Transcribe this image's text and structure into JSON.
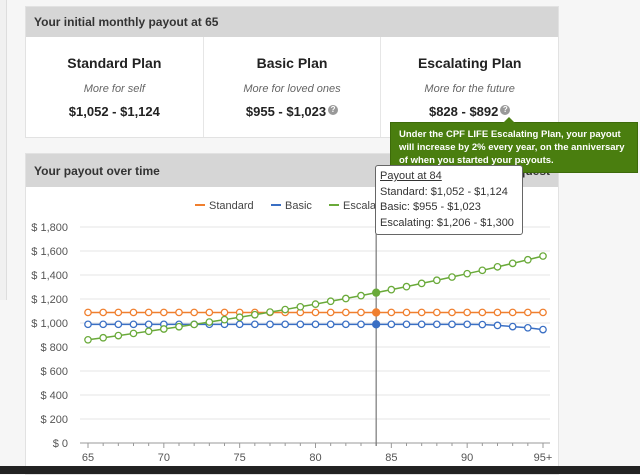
{
  "summary": {
    "title": "Your initial monthly payout at 65",
    "plans": [
      {
        "name": "Standard Plan",
        "subtitle": "More for self",
        "range": "$1,052 - $1,124",
        "help": false
      },
      {
        "name": "Basic Plan",
        "subtitle": "More for loved ones",
        "range": "$955 - $1,023",
        "help": true
      },
      {
        "name": "Escalating Plan",
        "subtitle": "More for the future",
        "range": "$828 - $892",
        "help": true
      }
    ]
  },
  "help_tooltip": "Under the CPF LIFE Escalating Plan, your payout will increase by 2% every year, on the anniversary of when you started your payouts.",
  "chart_panel": {
    "title": "Your payout over time",
    "partial_link": "equest"
  },
  "chart_tooltip": {
    "title": "Payout at 84",
    "lines": [
      "Standard: $1,052 - $1,124",
      "Basic: $955 - $1,023",
      "Escalating: $1,206 - $1,300"
    ]
  },
  "chart_data": {
    "type": "line",
    "x": [
      65,
      66,
      67,
      68,
      69,
      70,
      71,
      72,
      73,
      74,
      75,
      76,
      77,
      78,
      79,
      80,
      81,
      82,
      83,
      84,
      85,
      86,
      87,
      88,
      89,
      90,
      91,
      92,
      93,
      94,
      95
    ],
    "xticks": [
      "65",
      "70",
      "75",
      "80",
      "85",
      "90",
      "95+"
    ],
    "yticks": [
      "$ 0",
      "$ 200",
      "$ 400",
      "$ 600",
      "$ 800",
      "$ 1,000",
      "$ 1,200",
      "$ 1,400",
      "$ 1,600",
      "$ 1,800"
    ],
    "ylim": [
      0,
      1800
    ],
    "grid": true,
    "legend": "top",
    "highlight_x": 84,
    "series": [
      {
        "name": "Standard",
        "color": "#f07f2e",
        "values": [
          1088,
          1088,
          1088,
          1088,
          1088,
          1088,
          1088,
          1088,
          1088,
          1088,
          1088,
          1088,
          1088,
          1088,
          1088,
          1088,
          1088,
          1088,
          1088,
          1088,
          1088,
          1088,
          1088,
          1088,
          1088,
          1088,
          1088,
          1088,
          1088,
          1088,
          1088
        ]
      },
      {
        "name": "Basic",
        "color": "#3a6fc4",
        "values": [
          989,
          989,
          989,
          989,
          989,
          989,
          989,
          989,
          989,
          989,
          989,
          989,
          989,
          989,
          989,
          989,
          989,
          989,
          989,
          989,
          989,
          989,
          989,
          989,
          989,
          989,
          987,
          980,
          970,
          960,
          945
        ]
      },
      {
        "name": "Escalating",
        "color": "#6aaa3a",
        "values": [
          860,
          877,
          895,
          913,
          931,
          950,
          969,
          988,
          1008,
          1028,
          1048,
          1069,
          1091,
          1112,
          1135,
          1157,
          1181,
          1204,
          1228,
          1253,
          1278,
          1303,
          1330,
          1356,
          1383,
          1411,
          1439,
          1468,
          1497,
          1527,
          1558
        ]
      }
    ]
  }
}
